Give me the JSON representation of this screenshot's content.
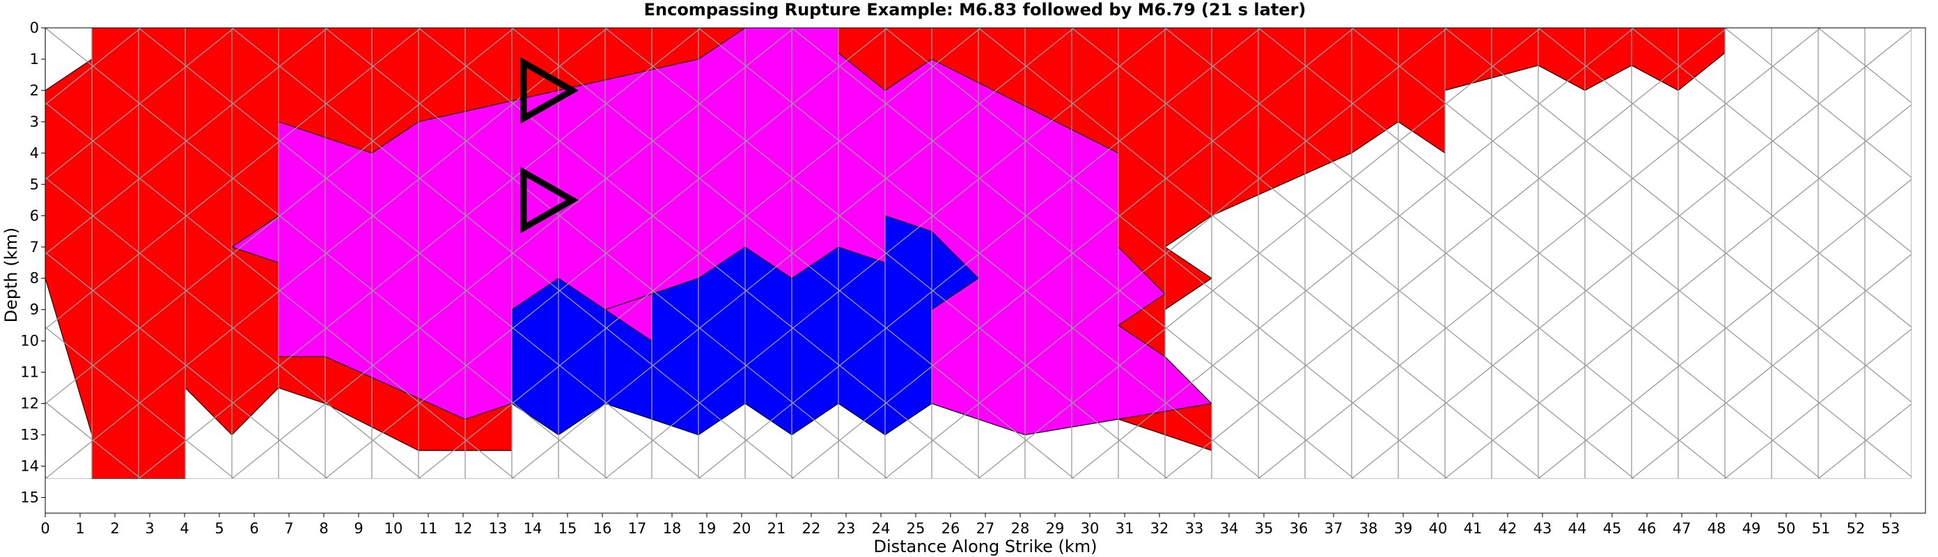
{
  "chart_data": {
    "type": "heatmap",
    "title": "Encompassing Rupture Example: M6.83 followed by M6.79 (21 s later)",
    "xlabel": "Distance Along Strike (km)",
    "ylabel": "Depth (km)",
    "xlim": [
      0,
      54
    ],
    "ylim": [
      0,
      15.5
    ],
    "y_inverted": true,
    "x_ticks": [
      0,
      1,
      2,
      3,
      4,
      5,
      6,
      7,
      8,
      9,
      10,
      11,
      12,
      13,
      14,
      15,
      16,
      17,
      18,
      19,
      20,
      21,
      22,
      23,
      24,
      25,
      26,
      27,
      28,
      29,
      30,
      31,
      32,
      33,
      34,
      35,
      36,
      37,
      38,
      39,
      40,
      41,
      42,
      43,
      44,
      45,
      46,
      47,
      48,
      49,
      50,
      51,
      52,
      53
    ],
    "y_ticks": [
      0,
      1,
      2,
      3,
      4,
      5,
      6,
      7,
      8,
      9,
      10,
      11,
      12,
      13,
      14,
      15
    ],
    "mesh": {
      "lattice_dx_km": 1.34,
      "lattice_dy_km": 2.39,
      "grid_extent": {
        "x": [
          0,
          53.6
        ],
        "y": [
          0,
          14.4
        ]
      }
    },
    "colors": {
      "first_only": "#ff0000",
      "both": "#ff00ff",
      "second_only": "#0000ff",
      "grid": "#9a9a9a"
    },
    "regions": [
      {
        "name": "first-rupture-only",
        "color": "#ff0000",
        "polygon": [
          [
            1.34,
            0
          ],
          [
            48.24,
            0
          ],
          [
            48.24,
            0.8
          ],
          [
            46.9,
            2.0
          ],
          [
            45.56,
            1.2
          ],
          [
            44.22,
            2.0
          ],
          [
            42.88,
            1.2
          ],
          [
            40.2,
            2.0
          ],
          [
            40.2,
            4.0
          ],
          [
            38.86,
            3.0
          ],
          [
            37.52,
            4.0
          ],
          [
            33.5,
            6.0
          ],
          [
            32.16,
            7.0
          ],
          [
            33.5,
            8.0
          ],
          [
            32.16,
            9.0
          ],
          [
            32.16,
            11.0
          ],
          [
            33.5,
            12.0
          ],
          [
            33.5,
            13.5
          ],
          [
            30.82,
            12.5
          ],
          [
            28.14,
            13.0
          ],
          [
            26.8,
            12.5
          ],
          [
            25.46,
            12.0
          ],
          [
            13.4,
            12.0
          ],
          [
            13.4,
            13.5
          ],
          [
            10.72,
            13.5
          ],
          [
            8.04,
            12.0
          ],
          [
            6.7,
            11.5
          ],
          [
            5.36,
            13.0
          ],
          [
            4.02,
            11.5
          ],
          [
            4.02,
            14.4
          ],
          [
            1.34,
            14.4
          ],
          [
            1.34,
            13.0
          ],
          [
            0,
            8.0
          ],
          [
            0,
            2.0
          ],
          [
            1.34,
            1.0
          ]
        ]
      },
      {
        "name": "both-ruptures",
        "color": "#ff00ff",
        "polygon": [
          [
            20.1,
            0
          ],
          [
            22.78,
            0
          ],
          [
            22.78,
            0.8
          ],
          [
            24.12,
            2.0
          ],
          [
            25.46,
            1.0
          ],
          [
            28.14,
            2.5
          ],
          [
            30.82,
            4.0
          ],
          [
            30.82,
            7.0
          ],
          [
            32.16,
            8.5
          ],
          [
            30.82,
            9.5
          ],
          [
            32.16,
            10.5
          ],
          [
            33.5,
            12.0
          ],
          [
            30.82,
            12.5
          ],
          [
            28.14,
            13.0
          ],
          [
            25.46,
            12.0
          ],
          [
            13.4,
            12.0
          ],
          [
            12.06,
            12.5
          ],
          [
            8.04,
            10.5
          ],
          [
            6.7,
            10.5
          ],
          [
            6.7,
            7.5
          ],
          [
            5.36,
            7.0
          ],
          [
            6.7,
            6.0
          ],
          [
            6.7,
            3.0
          ],
          [
            9.38,
            4.0
          ],
          [
            10.72,
            3.0
          ],
          [
            14.74,
            2.0
          ],
          [
            18.76,
            1.0
          ]
        ]
      },
      {
        "name": "second-rupture-only",
        "color": "#0000ff",
        "polygon": [
          [
            13.4,
            9.0
          ],
          [
            14.74,
            8.0
          ],
          [
            16.08,
            9.0
          ],
          [
            17.42,
            8.5
          ],
          [
            18.76,
            8.0
          ],
          [
            20.1,
            7.0
          ],
          [
            21.44,
            8.0
          ],
          [
            22.78,
            7.0
          ],
          [
            24.12,
            7.5
          ],
          [
            24.12,
            6.0
          ],
          [
            25.46,
            6.5
          ],
          [
            26.8,
            8.0
          ],
          [
            25.46,
            9.0
          ],
          [
            25.46,
            12.0
          ],
          [
            24.12,
            13.0
          ],
          [
            22.78,
            12.0
          ],
          [
            21.44,
            13.0
          ],
          [
            20.1,
            12.0
          ],
          [
            18.76,
            13.0
          ],
          [
            16.08,
            12.0
          ],
          [
            14.74,
            13.0
          ],
          [
            13.4,
            12.0
          ]
        ]
      },
      {
        "name": "both-ruptures-pocket",
        "color": "#ff00ff",
        "polygon": [
          [
            16.08,
            9.0
          ],
          [
            17.42,
            8.5
          ],
          [
            17.42,
            10.0
          ]
        ]
      }
    ],
    "markers": [
      {
        "name": "hypocenter-first",
        "shape": "triangle-right",
        "x": 14.3,
        "y": 2.0
      },
      {
        "name": "hypocenter-second",
        "shape": "triangle-right",
        "x": 14.3,
        "y": 5.5
      }
    ]
  }
}
